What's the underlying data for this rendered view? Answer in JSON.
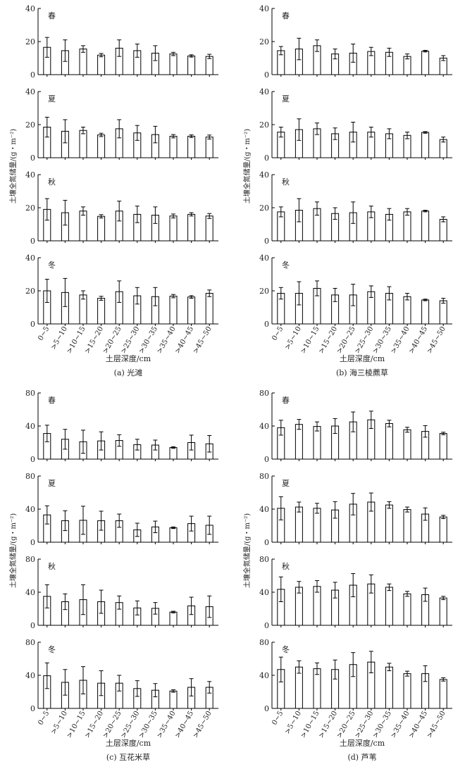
{
  "figure": {
    "depth_axis_label": "土层深度/cm",
    "y_axis_label": "土壤全氮储量/(g・m⁻²)"
  },
  "chart_data": [
    {
      "type": "bar",
      "panel": "a",
      "caption": "(a) 光滩",
      "xlabel": "土层深度/cm",
      "ylabel": "土壤全氮储量/(g・m⁻²)",
      "categories": [
        "0~5",
        ">5~10",
        ">10~15",
        ">15~20",
        ">20~25",
        ">25~30",
        ">30~35",
        ">35~40",
        ">40~45",
        ">45~50"
      ],
      "ylim": [
        0,
        40
      ],
      "yticks": [
        0,
        20,
        40
      ],
      "series": [
        {
          "name": "春",
          "values": [
            16.5,
            14.5,
            15.5,
            11.8,
            16,
            14.5,
            13,
            12.5,
            11.3,
            11
          ],
          "errors": [
            6,
            6.5,
            2,
            1,
            5,
            4,
            4.5,
            1,
            0.7,
            1.3
          ]
        },
        {
          "name": "夏",
          "values": [
            18.5,
            16,
            16.5,
            13.8,
            17.5,
            15,
            14,
            13,
            13,
            12.5
          ],
          "errors": [
            6,
            7,
            2,
            1,
            5.5,
            4.5,
            5,
            1,
            0.8,
            1.2
          ]
        },
        {
          "name": "秋",
          "values": [
            19,
            17,
            18,
            14.8,
            18,
            16,
            15.5,
            15,
            16,
            15
          ],
          "errors": [
            6.5,
            7.5,
            2.5,
            1,
            6,
            5,
            5,
            1.2,
            1,
            1.5
          ]
        },
        {
          "name": "冬",
          "values": [
            20,
            19,
            17.5,
            15.5,
            19.5,
            17,
            16.5,
            16.8,
            16.3,
            18.5
          ],
          "errors": [
            7,
            8.5,
            2.5,
            1.2,
            6.5,
            5,
            5.5,
            1,
            0.8,
            2
          ]
        }
      ]
    },
    {
      "type": "bar",
      "panel": "b",
      "caption": "(b) 海三棱藨草",
      "xlabel": "土层深度/cm",
      "ylabel": "土壤全氮储量/(g・m⁻²)",
      "categories": [
        "0~5",
        ">5~10",
        ">10~15",
        ">15~20",
        ">20~25",
        ">25~30",
        ">30~35",
        ">35~40",
        ">40~45",
        ">45~50"
      ],
      "ylim": [
        0,
        40
      ],
      "yticks": [
        0,
        20,
        40
      ],
      "series": [
        {
          "name": "春",
          "values": [
            14.5,
            15.5,
            17.5,
            12.5,
            13,
            14,
            13.5,
            11,
            14.2,
            10
          ],
          "errors": [
            2.5,
            6.5,
            3.5,
            3,
            5.5,
            2.5,
            2.5,
            1.5,
            0.5,
            1.5
          ]
        },
        {
          "name": "夏",
          "values": [
            15.5,
            17,
            17.5,
            14.5,
            15.5,
            15.5,
            14.5,
            13.5,
            15.3,
            11
          ],
          "errors": [
            3,
            6.5,
            3.5,
            3.5,
            6,
            3,
            3,
            2,
            0.5,
            1.5
          ]
        },
        {
          "name": "秋",
          "values": [
            17.5,
            18.5,
            19.5,
            16.5,
            17,
            17.5,
            16,
            17.5,
            18,
            13
          ],
          "errors": [
            3,
            7,
            4,
            3.5,
            6.5,
            3.5,
            3.5,
            2,
            0.5,
            1.5
          ]
        },
        {
          "name": "冬",
          "values": [
            18.5,
            18.5,
            21.5,
            17.5,
            17.5,
            19.5,
            18.5,
            16.5,
            14.5,
            14
          ],
          "errors": [
            3.5,
            7,
            4.5,
            4,
            6.5,
            3.5,
            4,
            2,
            0.5,
            1.5
          ]
        }
      ]
    },
    {
      "type": "bar",
      "panel": "c",
      "caption": "(c) 互花米草",
      "xlabel": "土层深度/cm",
      "ylabel": "土壤全氮储量/(g・m⁻²)",
      "categories": [
        "0~5",
        ">5~10",
        ">10~15",
        ">15~20",
        ">20~25",
        ">25~30",
        ">30~35",
        ">35~40",
        ">40~45",
        ">45~50"
      ],
      "ylim": [
        0,
        80
      ],
      "yticks": [
        0,
        40,
        80
      ],
      "series": [
        {
          "name": "春",
          "values": [
            31,
            24,
            21,
            22,
            22.5,
            17.5,
            17,
            14,
            20,
            18.5
          ],
          "errors": [
            10,
            12,
            14,
            11,
            7,
            6.5,
            6,
            1,
            9,
            10
          ]
        },
        {
          "name": "夏",
          "values": [
            33,
            26,
            26.5,
            26,
            26,
            15,
            18.5,
            17.5,
            22.5,
            20.5
          ],
          "errors": [
            11,
            12,
            17,
            11.5,
            8,
            8,
            7,
            1,
            9,
            11
          ]
        },
        {
          "name": "秋",
          "values": [
            35,
            28.5,
            31,
            28.5,
            27.5,
            21,
            20.5,
            16,
            23.5,
            22.5
          ],
          "errors": [
            14,
            9.5,
            18,
            14,
            8,
            8.5,
            7,
            1,
            10.5,
            13
          ]
        },
        {
          "name": "冬",
          "values": [
            39.5,
            31.5,
            34,
            30.5,
            30.5,
            24,
            22,
            21,
            25.5,
            25.5
          ],
          "errors": [
            15.5,
            15.5,
            16.5,
            15,
            9.5,
            9.5,
            8,
            1.5,
            10.5,
            7
          ]
        }
      ]
    },
    {
      "type": "bar",
      "panel": "d",
      "caption": "(d) 芦苇",
      "xlabel": "土层深度/cm",
      "ylabel": "土壤全氮储量/(g・m⁻²)",
      "categories": [
        "0~5",
        ">5~10",
        ">10~15",
        ">15~20",
        ">20~25",
        ">25~30",
        ">30~35",
        ">35~40",
        ">40~45",
        ">45~50"
      ],
      "ylim": [
        0,
        80
      ],
      "yticks": [
        0,
        40,
        80
      ],
      "series": [
        {
          "name": "春",
          "values": [
            38,
            42,
            39.5,
            40,
            45,
            47.5,
            43,
            35.5,
            33.5,
            31
          ],
          "errors": [
            9,
            6,
            5.5,
            9,
            12,
            10.5,
            4,
            3,
            7,
            1.5
          ]
        },
        {
          "name": "夏",
          "values": [
            41,
            42.5,
            41,
            39,
            46,
            48.5,
            45,
            39.5,
            34,
            30.5
          ],
          "errors": [
            14,
            6,
            6,
            10,
            13,
            11,
            4,
            3,
            7.5,
            2
          ]
        },
        {
          "name": "秋",
          "values": [
            43.5,
            46,
            47,
            42.5,
            48.5,
            50,
            46,
            38,
            37,
            33
          ],
          "errors": [
            15,
            7,
            7,
            9.5,
            14,
            11,
            4,
            3,
            8,
            2
          ]
        },
        {
          "name": "冬",
          "values": [
            47,
            50,
            48,
            47,
            53,
            56,
            50,
            42,
            42,
            35
          ],
          "errors": [
            15,
            7.5,
            7,
            11.5,
            14.5,
            13,
            4.5,
            3,
            9.5,
            2
          ]
        }
      ]
    }
  ]
}
